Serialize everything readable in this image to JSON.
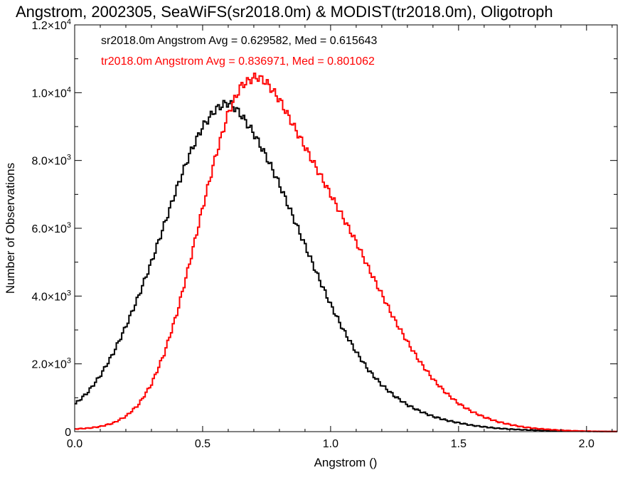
{
  "chart_data": {
    "type": "line",
    "title": "Angstrom, 2002305, SeaWiFS(sr2018.0m) & MODIST(tr2018.0m), Oligotroph",
    "xlabel": "Angstrom ()",
    "ylabel": "Number of Observations",
    "xlim": [
      0,
      2.12
    ],
    "ylim": [
      0,
      12000
    ],
    "grid": false,
    "x_ticks": [
      {
        "value": 0.0,
        "label": "0.0"
      },
      {
        "value": 0.5,
        "label": "0.5"
      },
      {
        "value": 1.0,
        "label": "1.0"
      },
      {
        "value": 1.5,
        "label": "1.5"
      },
      {
        "value": 2.0,
        "label": "2.0"
      }
    ],
    "y_ticks": [
      {
        "value": 0,
        "mantissa": "0",
        "exponent": ""
      },
      {
        "value": 2000,
        "mantissa": "2.0×10",
        "exponent": "3"
      },
      {
        "value": 4000,
        "mantissa": "4.0×10",
        "exponent": "3"
      },
      {
        "value": 6000,
        "mantissa": "6.0×10",
        "exponent": "3"
      },
      {
        "value": 8000,
        "mantissa": "8.0×10",
        "exponent": "3"
      },
      {
        "value": 10000,
        "mantissa": "1.0×10",
        "exponent": "4"
      },
      {
        "value": 12000,
        "mantissa": "1.2×10",
        "exponent": "4"
      }
    ],
    "annotations": [
      {
        "text": "sr2018.0m Angstrom Avg = 0.629582, Med = 0.615643",
        "color": "#000000"
      },
      {
        "text": "tr2018.0m Angstrom Avg = 0.836971, Med = 0.801062",
        "color": "#ff0000"
      }
    ],
    "series": [
      {
        "color": "#000000",
        "x": [
          0.0,
          0.05,
          0.1,
          0.15,
          0.2,
          0.25,
          0.3,
          0.35,
          0.4,
          0.45,
          0.5,
          0.55,
          0.58,
          0.6,
          0.62,
          0.65,
          0.7,
          0.75,
          0.8,
          0.85,
          0.9,
          0.95,
          1.0,
          1.05,
          1.1,
          1.15,
          1.2,
          1.25,
          1.3,
          1.35,
          1.4,
          1.45,
          1.5,
          1.55,
          1.6,
          1.65,
          1.7,
          1.75,
          1.8,
          1.85,
          1.9,
          1.95,
          2.0,
          2.05,
          2.1
        ],
        "y": [
          800,
          1150,
          1650,
          2300,
          3100,
          4000,
          5000,
          6100,
          7200,
          8200,
          9000,
          9500,
          9650,
          9700,
          9600,
          9350,
          8800,
          8100,
          7300,
          6400,
          5500,
          4600,
          3750,
          3000,
          2350,
          1800,
          1380,
          1050,
          790,
          600,
          450,
          340,
          260,
          190,
          140,
          100,
          75,
          55,
          40,
          30,
          20,
          15,
          10,
          6,
          3
        ]
      },
      {
        "color": "#ff0000",
        "x": [
          0.0,
          0.05,
          0.1,
          0.15,
          0.2,
          0.25,
          0.3,
          0.35,
          0.4,
          0.45,
          0.5,
          0.55,
          0.6,
          0.65,
          0.7,
          0.72,
          0.75,
          0.8,
          0.85,
          0.9,
          0.95,
          1.0,
          1.05,
          1.1,
          1.15,
          1.2,
          1.25,
          1.3,
          1.35,
          1.4,
          1.45,
          1.5,
          1.55,
          1.6,
          1.65,
          1.7,
          1.75,
          1.8,
          1.85,
          1.9,
          1.95,
          2.0,
          2.05,
          2.1
        ],
        "y": [
          80,
          100,
          150,
          250,
          450,
          800,
          1400,
          2300,
          3500,
          5000,
          6600,
          8100,
          9400,
          10200,
          10450,
          10450,
          10300,
          9800,
          9100,
          8400,
          7700,
          7000,
          6300,
          5600,
          4800,
          4050,
          3300,
          2650,
          2050,
          1550,
          1150,
          830,
          600,
          430,
          300,
          210,
          140,
          95,
          65,
          40,
          25,
          15,
          8,
          4
        ]
      }
    ]
  }
}
